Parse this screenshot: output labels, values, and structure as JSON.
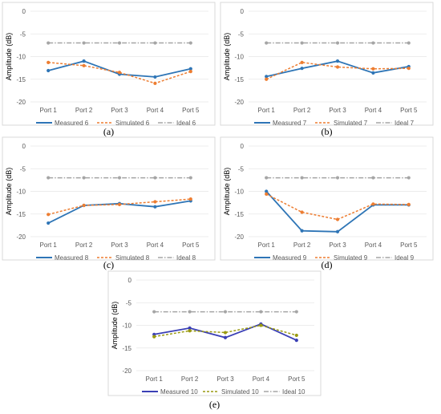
{
  "chart_data": [
    {
      "type": "line",
      "caption": "(a)",
      "categories": [
        "Port 1",
        "Port 2",
        "Port 3",
        "Port 4",
        "Port 5"
      ],
      "ylabel": "Amplitude (dB)",
      "ylim": [
        -20,
        0
      ],
      "yticks": [
        "0",
        "-5",
        "-10",
        "-15",
        "-20"
      ],
      "grid": true,
      "legend_position": "bottom",
      "series": [
        {
          "name": "Measured 6",
          "values": [
            -13.1,
            -11.0,
            -13.9,
            -14.5,
            -12.7
          ],
          "color": "#2E75B6",
          "style": "solid"
        },
        {
          "name": "Simulated 6",
          "values": [
            -11.3,
            -12.0,
            -13.5,
            -15.9,
            -13.3
          ],
          "color": "#ED7D31",
          "style": "dashed"
        },
        {
          "name": "Ideal 6",
          "values": [
            -7.0,
            -7.0,
            -7.0,
            -7.0,
            -7.0
          ],
          "color": "#A5A5A5",
          "style": "dashdot"
        }
      ]
    },
    {
      "type": "line",
      "caption": "(b)",
      "categories": [
        "Port 1",
        "Port 2",
        "Port 3",
        "Port 4",
        "Port 5"
      ],
      "ylabel": "Amplitude (dB)",
      "ylim": [
        -20,
        0
      ],
      "yticks": [
        "0",
        "-5",
        "-10",
        "-15",
        "-20"
      ],
      "grid": true,
      "legend_position": "bottom",
      "series": [
        {
          "name": "Measured 7",
          "values": [
            -14.4,
            -12.6,
            -11.0,
            -13.6,
            -12.2
          ],
          "color": "#2E75B6",
          "style": "solid"
        },
        {
          "name": "Simulated 7",
          "values": [
            -15.0,
            -11.3,
            -12.3,
            -12.7,
            -12.6
          ],
          "color": "#ED7D31",
          "style": "dashed"
        },
        {
          "name": "Ideal 7",
          "values": [
            -7.0,
            -7.0,
            -7.0,
            -7.0,
            -7.0
          ],
          "color": "#A5A5A5",
          "style": "dashdot"
        }
      ]
    },
    {
      "type": "line",
      "caption": "(c)",
      "categories": [
        "Port 1",
        "Port 2",
        "Port 3",
        "Port 4",
        "Port 5"
      ],
      "ylabel": "Amplitude (dB)",
      "ylim": [
        -20,
        0
      ],
      "yticks": [
        "0",
        "-5",
        "-10",
        "-15",
        "-20"
      ],
      "grid": true,
      "legend_position": "bottom",
      "series": [
        {
          "name": "Measured 8",
          "values": [
            -17.0,
            -13.1,
            -12.7,
            -13.4,
            -12.1
          ],
          "color": "#2E75B6",
          "style": "solid"
        },
        {
          "name": "Simulated 8",
          "values": [
            -15.1,
            -13.1,
            -12.9,
            -12.3,
            -11.7
          ],
          "color": "#ED7D31",
          "style": "dashed"
        },
        {
          "name": "Ideal 8",
          "values": [
            -7.0,
            -7.0,
            -7.0,
            -7.0,
            -7.0
          ],
          "color": "#A5A5A5",
          "style": "dashdot"
        }
      ]
    },
    {
      "type": "line",
      "caption": "(d)",
      "categories": [
        "Port 1",
        "Port 2",
        "Port 3",
        "Port 4",
        "Port 5"
      ],
      "ylabel": "Amplitude (dB)",
      "ylim": [
        -20,
        0
      ],
      "yticks": [
        "0",
        "-5",
        "-10",
        "-15",
        "-20"
      ],
      "grid": true,
      "legend_position": "bottom",
      "series": [
        {
          "name": "Measured 9",
          "values": [
            -10.0,
            -18.7,
            -18.9,
            -13.0,
            -13.0
          ],
          "color": "#2E75B6",
          "style": "solid"
        },
        {
          "name": "Simulated 9",
          "values": [
            -10.6,
            -14.6,
            -16.2,
            -12.8,
            -12.9
          ],
          "color": "#ED7D31",
          "style": "dashed"
        },
        {
          "name": "Ideal 9",
          "values": [
            -7.0,
            -7.0,
            -7.0,
            -7.0,
            -7.0
          ],
          "color": "#A5A5A5",
          "style": "dashdot"
        }
      ]
    },
    {
      "type": "line",
      "caption": "(e)",
      "categories": [
        "Port 1",
        "Port 2",
        "Port 3",
        "Port 4",
        "Port 5"
      ],
      "ylabel": "Amplitude (dB)",
      "ylim": [
        -20,
        0
      ],
      "yticks": [
        "0",
        "-5",
        "-10",
        "-15",
        "-20"
      ],
      "grid": true,
      "legend_position": "bottom",
      "series": [
        {
          "name": "Measured 10",
          "values": [
            -12.0,
            -10.6,
            -12.7,
            -9.7,
            -13.3
          ],
          "color": "#3A3FB5",
          "style": "solid"
        },
        {
          "name": "Simulated 10",
          "values": [
            -12.5,
            -11.2,
            -11.6,
            -10.0,
            -12.2
          ],
          "color": "#9A9A10",
          "style": "dashed"
        },
        {
          "name": "Ideal 10",
          "values": [
            -7.0,
            -7.0,
            -7.0,
            -7.0,
            -7.0
          ],
          "color": "#A5A5A5",
          "style": "dashdot"
        }
      ]
    }
  ]
}
